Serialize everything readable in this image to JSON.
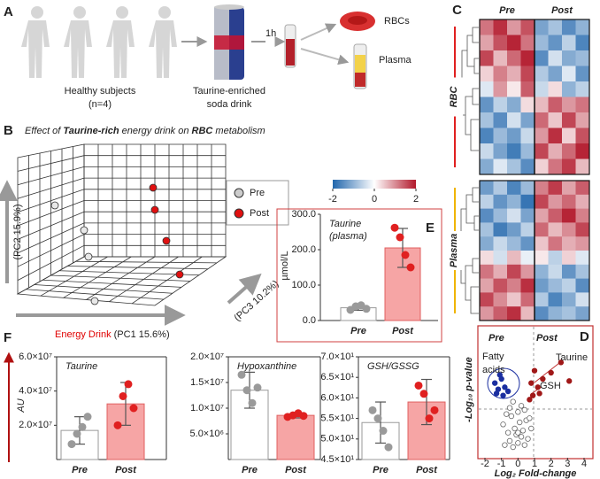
{
  "diagram": {
    "panels": [
      "A",
      "B"
    ],
    "a": {
      "subjects": [
        "Healthy subjects",
        "(n=4)"
      ],
      "drink": [
        "Taurine-enriched",
        "soda drink"
      ],
      "time": "1h",
      "rbc": "RBCs",
      "plasma": "Plasma"
    },
    "b": {
      "title": [
        "Effect of ",
        "Taurine-rich",
        " energy drink on ",
        "RBC",
        " metabolism"
      ],
      "legend": [
        "Pre",
        "Post"
      ],
      "pc2": "(PC2  15.9%)",
      "pc3": "(PC3 10.2%)",
      "pc1": [
        "Energy Drink",
        " (PC1 15.6%)"
      ]
    }
  },
  "chart_data": [
    {
      "type": "bar",
      "panel": "E",
      "title": "Taurine",
      "subtitle": "(plasma)",
      "ylabel": "µmol/L",
      "categories": [
        "Pre",
        "Post"
      ],
      "values": [
        36,
        205
      ],
      "errors": [
        7,
        55
      ],
      "points": [
        [
          30,
          40,
          43,
          33
        ],
        [
          262,
          235,
          185,
          150
        ]
      ],
      "colors": [
        "#ffffff",
        "#f6a5a5"
      ],
      "edge_colors": [
        "#999999",
        "#e06060"
      ],
      "point_colors": [
        "#9a9a9a",
        "#e02020"
      ],
      "label_colors": [
        "#999999",
        "#e00000"
      ],
      "ylim": [
        0,
        300
      ],
      "yticks": [
        {
          "value": 0,
          "label": "0.0"
        },
        {
          "value": 100,
          "label": "100.0"
        },
        {
          "value": 200,
          "label": "200.0"
        },
        {
          "value": 300,
          "label": "300.0"
        }
      ]
    },
    {
      "type": "bar",
      "panel": "F",
      "title": "Taurine",
      "ylabel": "AU",
      "categories": [
        "Pre",
        "Post"
      ],
      "values": [
        17000000,
        32500000
      ],
      "errors": [
        8000000,
        12500000
      ],
      "points": [
        [
          9000000,
          15000000,
          19000000,
          25000000
        ],
        [
          20000000,
          37000000,
          44000000,
          30000000
        ]
      ],
      "colors": [
        "#ffffff",
        "#f6a5a5"
      ],
      "edge_colors": [
        "#999999",
        "#e06060"
      ],
      "point_colors": [
        "#9a9a9a",
        "#e02020"
      ],
      "label_colors": [
        "#999999",
        "#e00000"
      ],
      "ylim": [
        0,
        60000000
      ],
      "yticks": [
        {
          "value": 20000000,
          "label": "2.0×10⁷"
        },
        {
          "value": 40000000,
          "label": "4.0×10⁷"
        },
        {
          "value": 60000000,
          "label": "6.0×10⁷"
        }
      ]
    },
    {
      "type": "bar",
      "title": "Hypoxanthine",
      "categories": [
        "Pre",
        "Post"
      ],
      "values": [
        13500000,
        8600000
      ],
      "errors": [
        3500000,
        500000
      ],
      "points": [
        [
          16500000,
          13500000,
          11000000,
          14000000
        ],
        [
          8300000,
          8600000,
          9000000,
          8500000
        ]
      ],
      "colors": [
        "#ffffff",
        "#f6a5a5"
      ],
      "edge_colors": [
        "#999999",
        "#e06060"
      ],
      "point_colors": [
        "#9a9a9a",
        "#e02020"
      ],
      "label_colors": [
        "#999999",
        "#e00000"
      ],
      "ylim": [
        0,
        20000000
      ],
      "yticks": [
        {
          "value": 5000000,
          "label": "5.0×10⁶"
        },
        {
          "value": 10000000,
          "label": "1.0×10⁷"
        },
        {
          "value": 15000000,
          "label": "1.5×10⁷"
        },
        {
          "value": 20000000,
          "label": "2.0×10⁷"
        }
      ]
    },
    {
      "type": "bar",
      "title": "GSH/GSSG",
      "categories": [
        "Pre",
        "Post"
      ],
      "values": [
        54,
        59
      ],
      "errors": [
        5,
        5.5
      ],
      "points": [
        [
          57,
          55,
          52,
          48
        ],
        [
          63,
          61,
          55,
          57
        ]
      ],
      "colors": [
        "#ffffff",
        "#f6a5a5"
      ],
      "edge_colors": [
        "#999999",
        "#e06060"
      ],
      "point_colors": [
        "#9a9a9a",
        "#e02020"
      ],
      "label_colors": [
        "#999999",
        "#e00000"
      ],
      "ylim": [
        45,
        70
      ],
      "yticks": [
        {
          "value": 45,
          "label": "4.5×10¹"
        },
        {
          "value": 50,
          "label": "5.0×10¹"
        },
        {
          "value": 55,
          "label": "5.5×10¹"
        },
        {
          "value": 60,
          "label": "6.0×10¹"
        },
        {
          "value": 65,
          "label": "6.5×10¹"
        },
        {
          "value": 70,
          "label": "7.0×10¹"
        }
      ]
    },
    {
      "type": "heatmap",
      "panel": "C",
      "column_groups": [
        "Pre",
        "Post"
      ],
      "column_group_colors": [
        "#999999",
        "#e00000"
      ],
      "colormap": [
        "#2166ac",
        "#ffffff",
        "#b2182b"
      ],
      "clim": [
        -2,
        2
      ],
      "cticks": [
        -2,
        0,
        2
      ],
      "groups": [
        {
          "name": "RBC",
          "color": "#e02020",
          "values": [
            [
              1.2,
              1.8,
              0.9,
              1.5,
              -1.2,
              -0.8,
              -1.5,
              -1.0
            ],
            [
              0.8,
              1.5,
              1.9,
              1.2,
              -0.9,
              -1.4,
              -0.6,
              -1.6
            ],
            [
              1.6,
              0.6,
              1.3,
              1.9,
              -1.5,
              -0.4,
              -1.1,
              -0.9
            ],
            [
              0.4,
              1.1,
              0.7,
              1.6,
              -0.7,
              -1.2,
              -0.3,
              -1.4
            ],
            [
              -0.3,
              0.9,
              0.2,
              1.4,
              -0.5,
              0.3,
              -1.0,
              -0.6
            ],
            [
              -1.4,
              -0.6,
              -1.1,
              0.3,
              0.6,
              1.4,
              0.9,
              1.2
            ],
            [
              -0.8,
              -1.5,
              -0.4,
              -1.2,
              1.3,
              0.5,
              1.6,
              0.8
            ],
            [
              -1.6,
              -0.9,
              -1.3,
              -0.5,
              0.9,
              1.8,
              0.4,
              1.5
            ],
            [
              -0.5,
              -1.2,
              -1.7,
              -0.9,
              1.6,
              0.7,
              1.3,
              1.9
            ],
            [
              -1.1,
              -0.3,
              -0.8,
              -1.5,
              0.4,
              1.2,
              1.7,
              0.6
            ]
          ]
        },
        {
          "name": "Plasma",
          "color": "#f0b400",
          "values": [
            [
              -1.3,
              -0.7,
              -1.6,
              -0.9,
              1.1,
              1.7,
              0.8,
              1.4
            ],
            [
              -0.6,
              -1.4,
              -1.0,
              -1.8,
              1.6,
              0.9,
              1.3,
              0.7
            ],
            [
              -1.5,
              -0.9,
              -0.4,
              -1.2,
              0.8,
              1.4,
              1.9,
              1.1
            ],
            [
              -0.8,
              -1.7,
              -1.3,
              -0.6,
              1.3,
              0.6,
              1.0,
              1.6
            ],
            [
              -1.1,
              -0.5,
              -0.9,
              -1.4,
              0.5,
              1.2,
              0.7,
              0.9
            ],
            [
              0.3,
              -0.4,
              0.6,
              -0.2,
              0.2,
              -0.6,
              0.4,
              -0.3
            ],
            [
              1.2,
              0.7,
              1.6,
              0.9,
              -1.0,
              -0.5,
              -1.4,
              -0.8
            ],
            [
              0.8,
              1.5,
              1.1,
              1.8,
              -1.3,
              -0.9,
              -0.6,
              -1.5
            ],
            [
              1.6,
              1.0,
              0.5,
              1.3,
              -0.7,
              -1.6,
              -1.1,
              -0.4
            ],
            [
              0.9,
              1.4,
              1.8,
              0.6,
              -1.5,
              -1.0,
              -0.8,
              -1.2
            ]
          ]
        }
      ]
    },
    {
      "type": "scatter",
      "panel": "D",
      "xlabel": "Log₂ Fold-change",
      "ylabel": "-Log₁₀ p-value",
      "xlim": [
        -2,
        4
      ],
      "xticks": [
        -2,
        -1,
        0,
        1,
        2,
        3,
        4
      ],
      "ylim": [
        0,
        6
      ],
      "annotations": [
        "Pre",
        "Post",
        "Fatty",
        "acids",
        "Taurine",
        "GSH"
      ],
      "series": [
        {
          "color": "#666666",
          "filled": false,
          "x": [
            -0.8,
            -0.5,
            -0.3,
            0,
            0.2,
            0.4,
            -0.6,
            -0.2,
            0.1,
            0.3,
            0.6,
            -0.9,
            -0.4,
            0,
            0.5,
            0.8,
            -0.1,
            0.2,
            -0.7,
            0.4,
            -0.3,
            0.7,
            0,
            -0.5
          ],
          "y": [
            0.4,
            0.6,
            0.3,
            0.5,
            0.8,
            0.4,
            1.0,
            1.2,
            1.5,
            1.1,
            0.7,
            1.4,
            1.8,
            2.0,
            1.6,
            1.2,
            0.9,
            2.3,
            1.9,
            2.1,
            2.5,
            1.7,
            1.0,
            2.2
          ]
        },
        {
          "color": "#1a2ea0",
          "filled": true,
          "x": [
            -1.4,
            -1.2,
            -1.0,
            -0.8,
            -1.3,
            -0.9,
            -0.6,
            -1.1
          ],
          "y": [
            3.4,
            3.1,
            3.6,
            3.2,
            2.9,
            2.8,
            3.0,
            3.8
          ]
        },
        {
          "color": "#a01818",
          "filled": true,
          "x": [
            0.9,
            1.2,
            1.5,
            1.0,
            0.7,
            2.0,
            2.6,
            3.1,
            1.3,
            0.8
          ],
          "y": [
            2.8,
            3.2,
            3.6,
            4.0,
            2.6,
            3.9,
            4.4,
            3.5,
            2.9,
            3.4
          ]
        }
      ]
    }
  ]
}
